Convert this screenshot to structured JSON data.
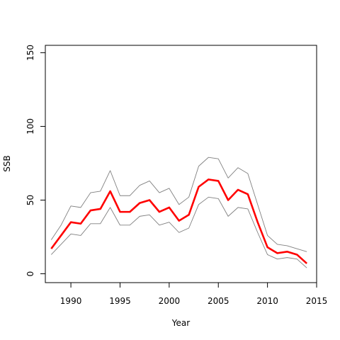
{
  "chart_data": {
    "type": "line",
    "title": "",
    "xlabel": "Year",
    "ylabel": "SSB",
    "xlim": [
      1987.4,
      2015.0
    ],
    "ylim": [
      -6,
      155
    ],
    "xticks": [
      1990,
      1995,
      2000,
      2005,
      2010,
      2015
    ],
    "yticks": [
      0,
      50,
      100,
      150
    ],
    "grid": false,
    "x": [
      1988,
      1989,
      1990,
      1991,
      1992,
      1993,
      1994,
      1995,
      1996,
      1997,
      1998,
      1999,
      2000,
      2001,
      2002,
      2003,
      2004,
      2005,
      2006,
      2007,
      2008,
      2009,
      2010,
      2011,
      2012,
      2013,
      2014
    ],
    "series": [
      {
        "role": "upper",
        "color": "#808080",
        "values": [
          23,
          33,
          46,
          45,
          55,
          56,
          70,
          53,
          53,
          60,
          63,
          55,
          58,
          47,
          52,
          73,
          79,
          78,
          65,
          72,
          68,
          47,
          26,
          20,
          19,
          17,
          15
        ]
      },
      {
        "role": "estimate",
        "color": "#ff0000",
        "values": [
          17,
          26,
          35,
          34,
          43,
          44,
          56,
          42,
          42,
          48,
          50,
          42,
          45,
          36,
          40,
          59,
          64,
          63,
          50,
          57,
          54,
          35,
          18,
          14,
          15,
          13,
          7
        ]
      },
      {
        "role": "lower",
        "color": "#808080",
        "values": [
          13,
          20,
          27,
          26,
          34,
          34,
          45,
          33,
          33,
          39,
          40,
          33,
          35,
          28,
          31,
          47,
          52,
          51,
          39,
          45,
          44,
          28,
          13,
          10,
          11,
          10,
          4
        ]
      }
    ]
  }
}
